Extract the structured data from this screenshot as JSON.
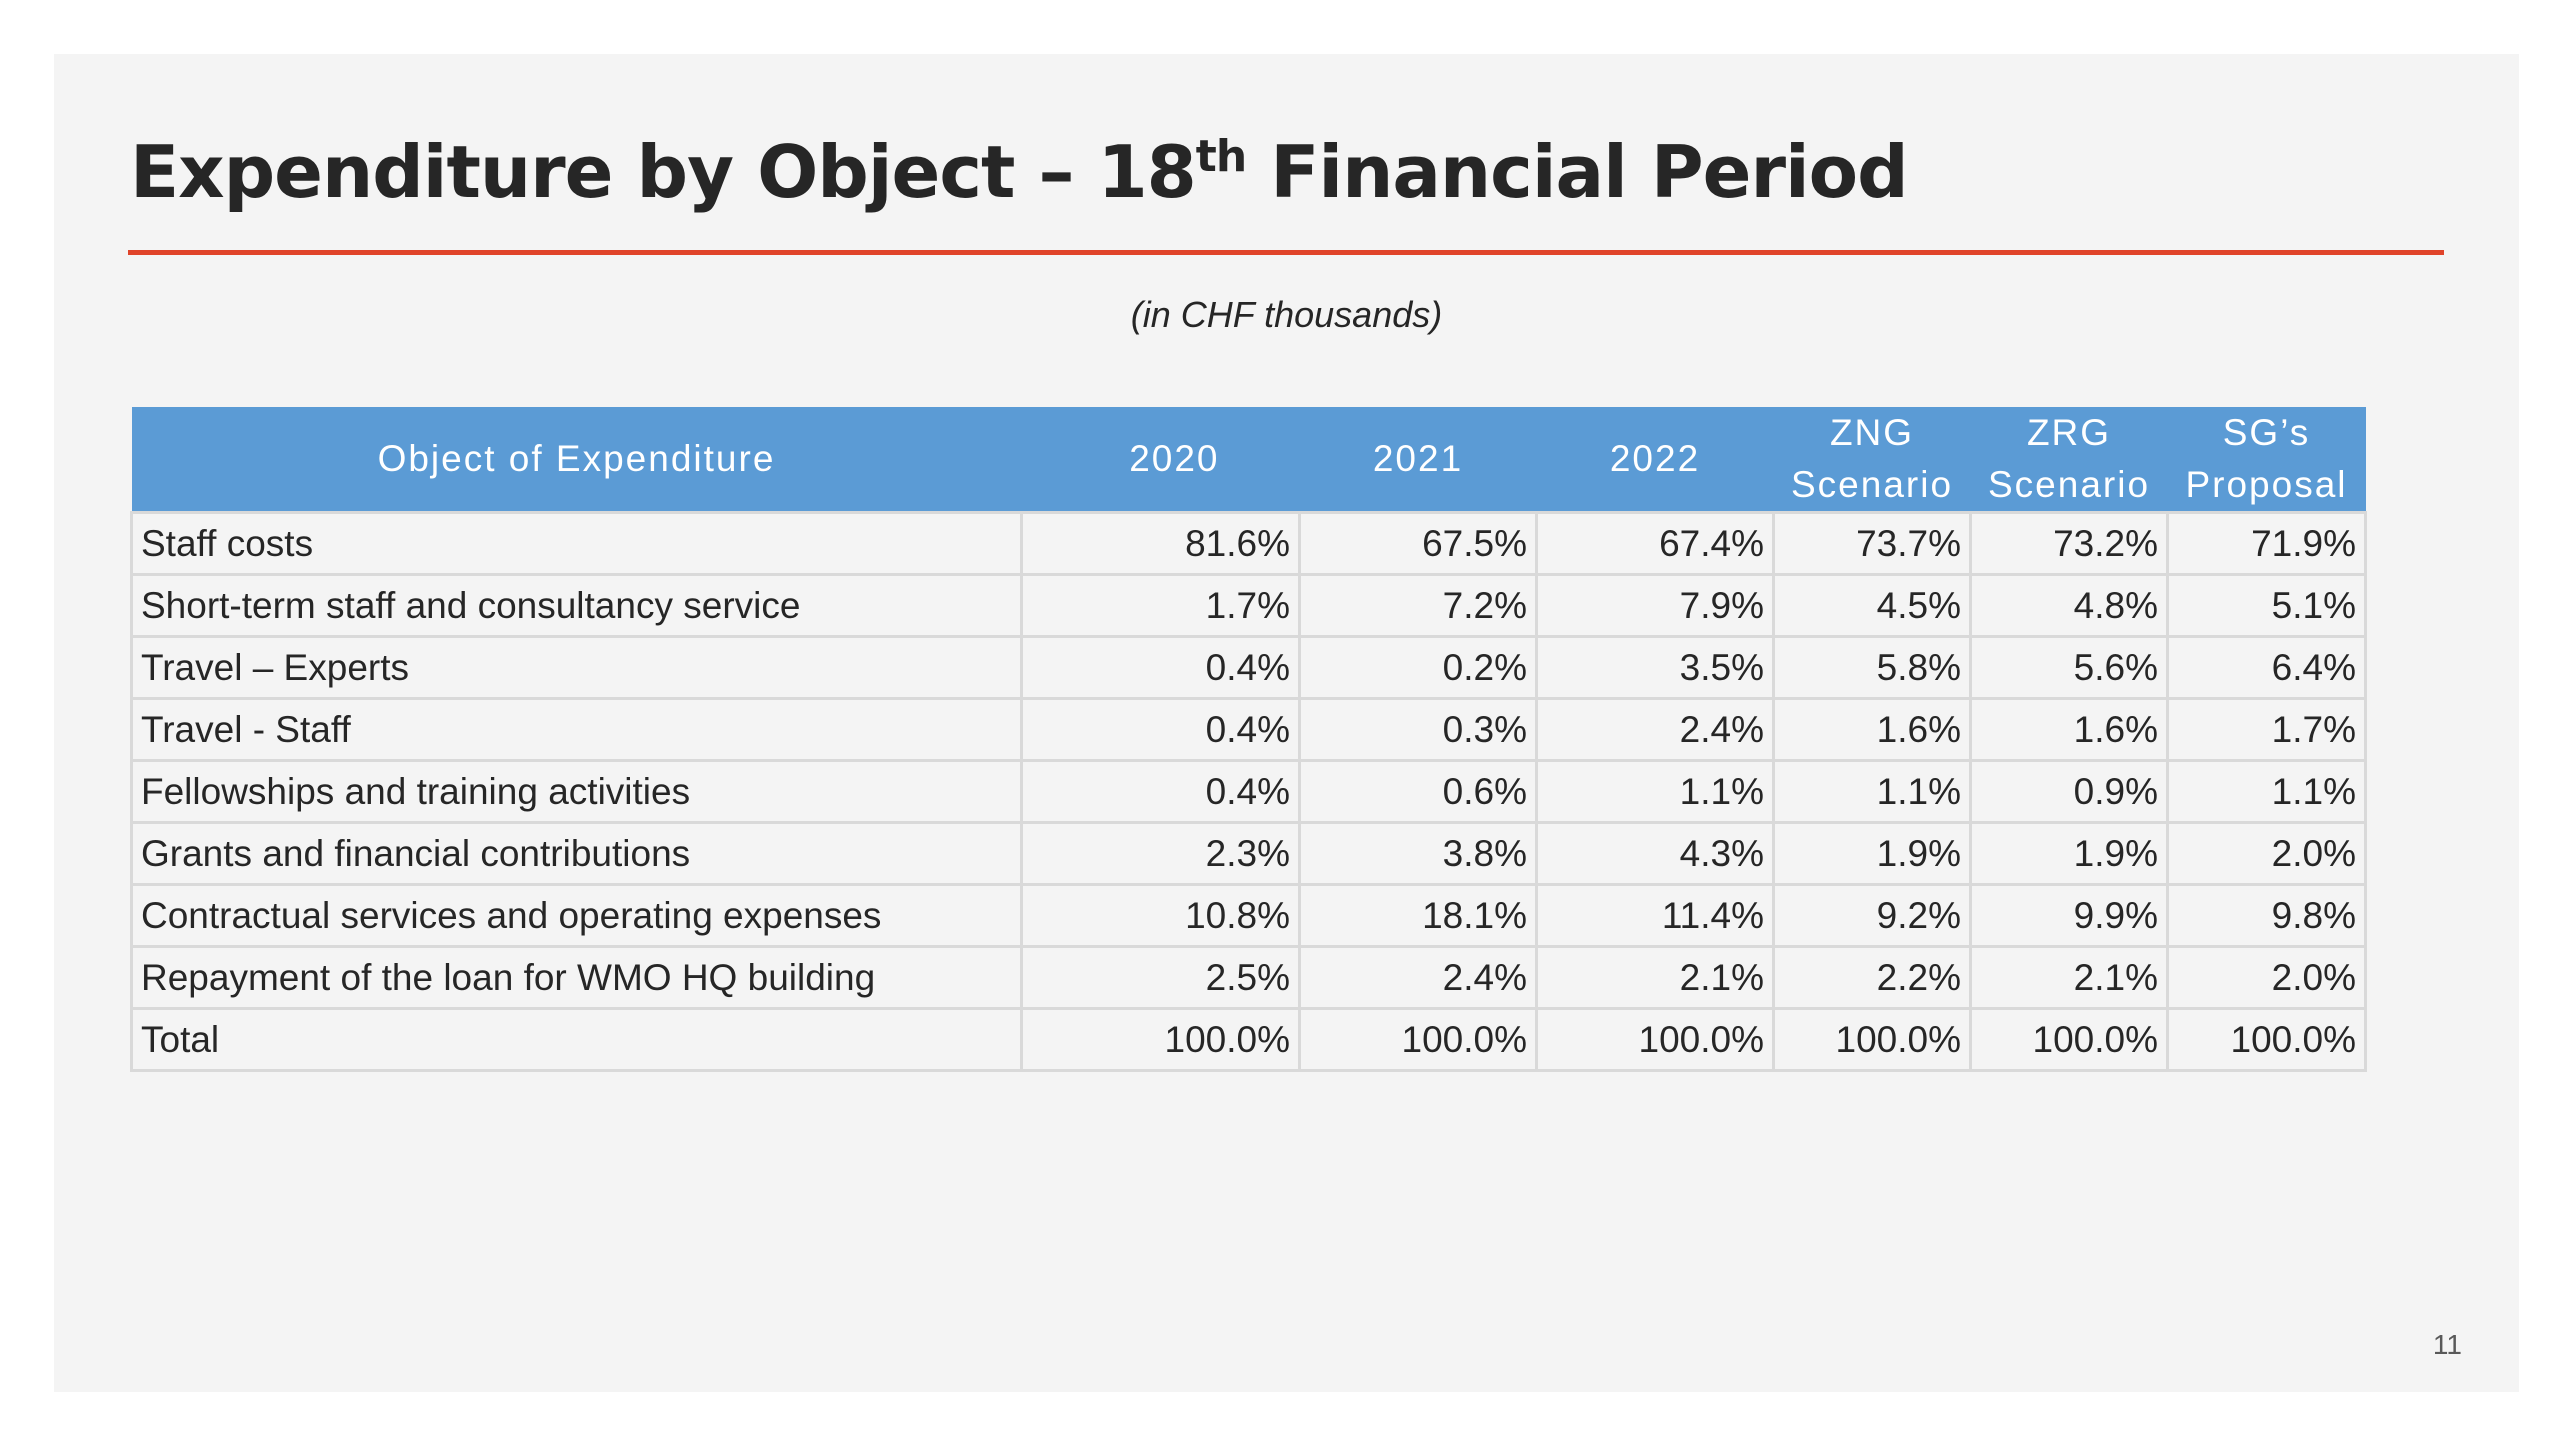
{
  "slide": {
    "title_main": "Expenditure by Object – 18",
    "title_sup": "th",
    "title_rest": " Financial Period",
    "subtitle": "(in CHF thousands)",
    "page_number": "11",
    "accent_color": "#e0442a",
    "header_color": "#5b9bd5"
  },
  "table": {
    "headers": {
      "object": "Object of Expenditure",
      "y2020": "2020",
      "y2021": "2021",
      "y2022": "2022",
      "zng_line1": "ZNG",
      "zng_line2": "Scenario",
      "zrg_line1": "ZRG",
      "zrg_line2": "Scenario",
      "sg_line1": "SG’s",
      "sg_line2": "Proposal"
    },
    "rows": [
      {
        "label": "Staff costs",
        "v2020": "81.6%",
        "v2021": "67.5%",
        "v2022": "67.4%",
        "zng": "73.7%",
        "zrg": "73.2%",
        "sg": "71.9%"
      },
      {
        "label": "Short-term staff and consultancy service",
        "v2020": "1.7%",
        "v2021": "7.2%",
        "v2022": "7.9%",
        "zng": "4.5%",
        "zrg": "4.8%",
        "sg": "5.1%"
      },
      {
        "label": "Travel – Experts",
        "v2020": "0.4%",
        "v2021": "0.2%",
        "v2022": "3.5%",
        "zng": "5.8%",
        "zrg": "5.6%",
        "sg": "6.4%"
      },
      {
        "label": "Travel - Staff",
        "v2020": "0.4%",
        "v2021": "0.3%",
        "v2022": "2.4%",
        "zng": "1.6%",
        "zrg": "1.6%",
        "sg": "1.7%"
      },
      {
        "label": "Fellowships and training activities",
        "v2020": "0.4%",
        "v2021": "0.6%",
        "v2022": "1.1%",
        "zng": "1.1%",
        "zrg": "0.9%",
        "sg": "1.1%"
      },
      {
        "label": "Grants and financial contributions",
        "v2020": "2.3%",
        "v2021": "3.8%",
        "v2022": "4.3%",
        "zng": "1.9%",
        "zrg": "1.9%",
        "sg": "2.0%"
      },
      {
        "label": "Contractual services and operating expenses",
        "v2020": "10.8%",
        "v2021": "18.1%",
        "v2022": "11.4%",
        "zng": "9.2%",
        "zrg": "9.9%",
        "sg": "9.8%"
      },
      {
        "label": "Repayment of the loan for WMO HQ building",
        "v2020": "2.5%",
        "v2021": "2.4%",
        "v2022": "2.1%",
        "zng": "2.2%",
        "zrg": "2.1%",
        "sg": "2.0%"
      },
      {
        "label": "Total",
        "v2020": "100.0%",
        "v2021": "100.0%",
        "v2022": "100.0%",
        "zng": "100.0%",
        "zrg": "100.0%",
        "sg": "100.0%"
      }
    ]
  }
}
